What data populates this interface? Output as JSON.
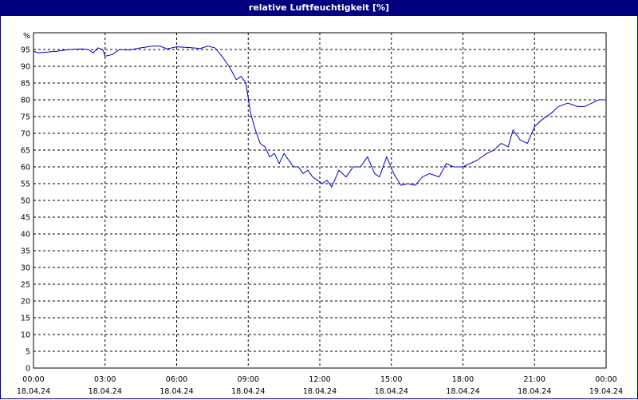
{
  "chart_data": {
    "type": "line",
    "title": "relative Luftfeuchtigkeit [%]",
    "ylabel": "%",
    "ylim": [
      0,
      100
    ],
    "yticks": [
      0,
      5,
      10,
      15,
      20,
      25,
      30,
      35,
      40,
      45,
      50,
      55,
      60,
      65,
      70,
      75,
      80,
      85,
      90,
      95
    ],
    "xlim": [
      0,
      24
    ],
    "x_ticks": [
      {
        "hour": 0,
        "time": "00:00",
        "date": "18.04.24"
      },
      {
        "hour": 3,
        "time": "03:00",
        "date": "18.04.24"
      },
      {
        "hour": 6,
        "time": "06:00",
        "date": "18.04.24"
      },
      {
        "hour": 9,
        "time": "09:00",
        "date": "18.04.24"
      },
      {
        "hour": 12,
        "time": "12:00",
        "date": "18.04.24"
      },
      {
        "hour": 15,
        "time": "15:00",
        "date": "18.04.24"
      },
      {
        "hour": 18,
        "time": "18:00",
        "date": "18.04.24"
      },
      {
        "hour": 21,
        "time": "21:00",
        "date": "18.04.24"
      },
      {
        "hour": 24,
        "time": "00:00",
        "date": "19.04.24"
      }
    ],
    "grid": true,
    "line_color": "#0000cc",
    "series": [
      {
        "x": [
          0,
          0.2,
          0.5,
          1,
          1.5,
          2,
          2.3,
          2.5,
          2.7,
          2.9,
          3,
          3.3,
          3.6,
          4,
          4.5,
          5,
          5.3,
          5.6,
          6,
          6.5,
          7,
          7.3,
          7.6,
          7.9,
          8.2,
          8.5,
          8.7,
          8.9,
          9.1,
          9.3,
          9.5,
          9.7,
          9.9,
          10.1,
          10.3,
          10.5,
          10.7,
          10.9,
          11.1,
          11.3,
          11.5,
          11.7,
          11.9,
          12.1,
          12.3,
          12.5,
          12.8,
          13.1,
          13.4,
          13.7,
          14,
          14.3,
          14.5,
          14.8,
          15.1,
          15.4,
          15.7,
          16,
          16.3,
          16.6,
          17,
          17.3,
          17.6,
          18,
          18.3,
          18.6,
          19,
          19.3,
          19.6,
          19.9,
          20.1,
          20.4,
          20.7,
          21,
          21.3,
          21.7,
          22,
          22.4,
          22.8,
          23.1,
          23.4,
          23.7,
          24
        ],
        "y": [
          94.5,
          94,
          94.2,
          94.5,
          95,
          95.2,
          95,
          94,
          95.5,
          95,
          93,
          93.5,
          95,
          94.8,
          95.5,
          96,
          96,
          95.2,
          95.8,
          95.6,
          95.3,
          96,
          95.5,
          93,
          90,
          86,
          87,
          85,
          76,
          71,
          67,
          66,
          63,
          64,
          61,
          64,
          62,
          60,
          60,
          58,
          59,
          57,
          56,
          55,
          56,
          54,
          59,
          57,
          60,
          60,
          63,
          58,
          57,
          63,
          58,
          54.5,
          55,
          54.5,
          57,
          58,
          57,
          61,
          60,
          60,
          61,
          62,
          64,
          65,
          67,
          66,
          71,
          68,
          67,
          72,
          74,
          76,
          78,
          79,
          78,
          78,
          79,
          80,
          80
        ]
      }
    ]
  }
}
